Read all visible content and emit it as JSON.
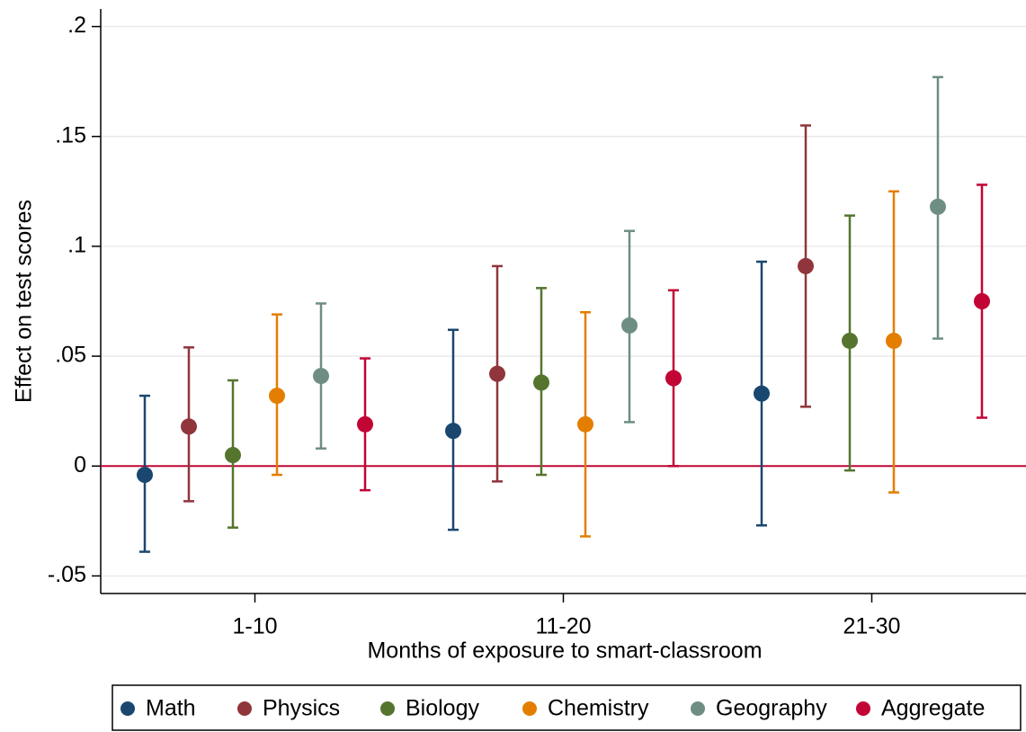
{
  "chart_data": {
    "type": "errorbar",
    "x_label": "Months of exposure to smart-classroom",
    "y_label": "Effect on test scores",
    "categories": [
      "1-10",
      "11-20",
      "21-30"
    ],
    "ylim": [
      -0.058,
      0.208
    ],
    "yticks": [
      {
        "value": -0.05,
        "label": "-.05"
      },
      0,
      {
        "value": 0.05,
        "label": ".05"
      },
      {
        "value": 0.1,
        "label": ".1"
      },
      {
        "value": 0.15,
        "label": ".15"
      },
      {
        "value": 0.2,
        "label": ".2"
      }
    ],
    "grid": true,
    "reference_line": 0,
    "reference_color": "#c10534",
    "legend": "bottom",
    "series": [
      {
        "name": "Math",
        "color": "#1a476f",
        "values": [
          -0.004,
          0.016,
          0.033
        ],
        "lower": [
          -0.039,
          -0.029,
          -0.027
        ],
        "upper": [
          0.032,
          0.062,
          0.093
        ]
      },
      {
        "name": "Physics",
        "color": "#90353b",
        "values": [
          0.018,
          0.042,
          0.091
        ],
        "lower": [
          -0.016,
          -0.007,
          0.027
        ],
        "upper": [
          0.054,
          0.091,
          0.155
        ]
      },
      {
        "name": "Biology",
        "color": "#55752f",
        "values": [
          0.005,
          0.038,
          0.057
        ],
        "lower": [
          -0.028,
          -0.004,
          -0.002
        ],
        "upper": [
          0.039,
          0.081,
          0.114
        ]
      },
      {
        "name": "Chemistry",
        "color": "#e37e00",
        "values": [
          0.032,
          0.019,
          0.057
        ],
        "lower": [
          -0.004,
          -0.032,
          -0.012
        ],
        "upper": [
          0.069,
          0.07,
          0.125
        ]
      },
      {
        "name": "Geography",
        "color": "#6e8e84",
        "values": [
          0.041,
          0.064,
          0.118
        ],
        "lower": [
          0.008,
          0.02,
          0.058
        ],
        "upper": [
          0.074,
          0.107,
          0.177
        ]
      },
      {
        "name": "Aggregate",
        "color": "#c10534",
        "values": [
          0.019,
          0.04,
          0.075
        ],
        "lower": [
          -0.011,
          0.0,
          0.022
        ],
        "upper": [
          0.049,
          0.08,
          0.128
        ]
      }
    ]
  }
}
